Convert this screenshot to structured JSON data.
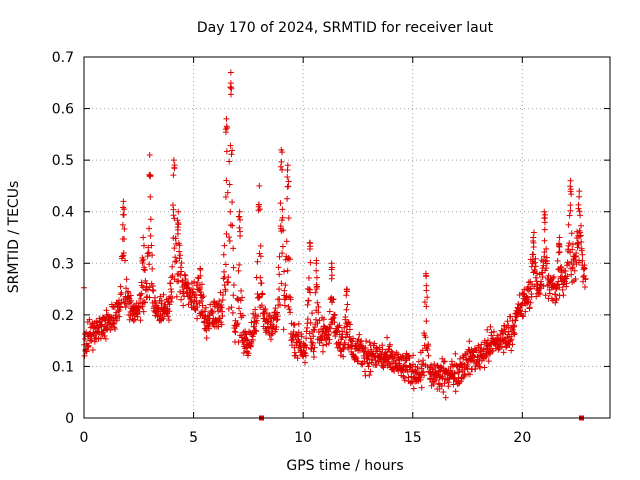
{
  "chart_data": {
    "type": "scatter",
    "title": "Day 170 of 2024, SRMTID for receiver laut",
    "xlabel": "GPS time / hours",
    "ylabel": "SRMTID / TECUs",
    "xlim": [
      0,
      24
    ],
    "ylim": [
      0,
      0.7
    ],
    "grid": true,
    "marker": "+",
    "series_color": "#e00000",
    "x_ticks": [
      0,
      5,
      10,
      15,
      20
    ],
    "x_tick_labels": [
      "0",
      "5",
      "10",
      "15",
      "20"
    ],
    "y_ticks": [
      0,
      0.1,
      0.2,
      0.3,
      0.4,
      0.5,
      0.6,
      0.7
    ],
    "y_tick_labels": [
      "0",
      "0.1",
      "0.2",
      "0.3",
      "0.4",
      "0.5",
      "0.6",
      "0.7"
    ],
    "series": [
      {
        "name": "SRMTID",
        "sampling": "dense noisy scatter; values seeded from the trend profile below",
        "trend": [
          {
            "x": 0.0,
            "y": 0.14
          },
          {
            "x": 0.5,
            "y": 0.17
          },
          {
            "x": 1.0,
            "y": 0.18
          },
          {
            "x": 1.5,
            "y": 0.2
          },
          {
            "x": 2.0,
            "y": 0.22
          },
          {
            "x": 2.5,
            "y": 0.2
          },
          {
            "x": 3.0,
            "y": 0.23
          },
          {
            "x": 3.5,
            "y": 0.21
          },
          {
            "x": 4.0,
            "y": 0.22
          },
          {
            "x": 4.5,
            "y": 0.25
          },
          {
            "x": 5.0,
            "y": 0.23
          },
          {
            "x": 5.5,
            "y": 0.19
          },
          {
            "x": 6.0,
            "y": 0.2
          },
          {
            "x": 6.5,
            "y": 0.22
          },
          {
            "x": 7.0,
            "y": 0.16
          },
          {
            "x": 7.5,
            "y": 0.14
          },
          {
            "x": 8.0,
            "y": 0.2
          },
          {
            "x": 8.5,
            "y": 0.18
          },
          {
            "x": 9.0,
            "y": 0.2
          },
          {
            "x": 9.5,
            "y": 0.16
          },
          {
            "x": 10.0,
            "y": 0.14
          },
          {
            "x": 10.5,
            "y": 0.13
          },
          {
            "x": 11.0,
            "y": 0.17
          },
          {
            "x": 11.5,
            "y": 0.16
          },
          {
            "x": 12.0,
            "y": 0.14
          },
          {
            "x": 12.5,
            "y": 0.13
          },
          {
            "x": 13.0,
            "y": 0.12
          },
          {
            "x": 13.5,
            "y": 0.12
          },
          {
            "x": 14.0,
            "y": 0.11
          },
          {
            "x": 14.5,
            "y": 0.1
          },
          {
            "x": 15.0,
            "y": 0.09
          },
          {
            "x": 15.5,
            "y": 0.09
          },
          {
            "x": 16.0,
            "y": 0.08
          },
          {
            "x": 16.5,
            "y": 0.08
          },
          {
            "x": 17.0,
            "y": 0.09
          },
          {
            "x": 17.5,
            "y": 0.11
          },
          {
            "x": 18.0,
            "y": 0.12
          },
          {
            "x": 18.5,
            "y": 0.14
          },
          {
            "x": 19.0,
            "y": 0.15
          },
          {
            "x": 19.5,
            "y": 0.17
          },
          {
            "x": 20.0,
            "y": 0.22
          },
          {
            "x": 20.5,
            "y": 0.25
          },
          {
            "x": 21.0,
            "y": 0.26
          },
          {
            "x": 21.5,
            "y": 0.25
          },
          {
            "x": 22.0,
            "y": 0.27
          },
          {
            "x": 22.5,
            "y": 0.3
          },
          {
            "x": 22.9,
            "y": 0.28
          }
        ],
        "peaks": [
          {
            "x": 1.8,
            "y": 0.42
          },
          {
            "x": 2.7,
            "y": 0.35
          },
          {
            "x": 3.0,
            "y": 0.51
          },
          {
            "x": 4.1,
            "y": 0.5
          },
          {
            "x": 4.3,
            "y": 0.4
          },
          {
            "x": 5.3,
            "y": 0.29
          },
          {
            "x": 6.5,
            "y": 0.58
          },
          {
            "x": 6.7,
            "y": 0.67
          },
          {
            "x": 7.1,
            "y": 0.4
          },
          {
            "x": 8.0,
            "y": 0.45
          },
          {
            "x": 9.0,
            "y": 0.52
          },
          {
            "x": 9.3,
            "y": 0.49
          },
          {
            "x": 10.3,
            "y": 0.34
          },
          {
            "x": 10.6,
            "y": 0.3
          },
          {
            "x": 11.3,
            "y": 0.3
          },
          {
            "x": 12.0,
            "y": 0.25
          },
          {
            "x": 15.6,
            "y": 0.28
          },
          {
            "x": 20.5,
            "y": 0.35
          },
          {
            "x": 21.0,
            "y": 0.4
          },
          {
            "x": 21.7,
            "y": 0.35
          },
          {
            "x": 22.2,
            "y": 0.46
          },
          {
            "x": 22.6,
            "y": 0.44
          }
        ],
        "markers_on_axis": [
          8.1,
          22.7
        ]
      }
    ]
  }
}
